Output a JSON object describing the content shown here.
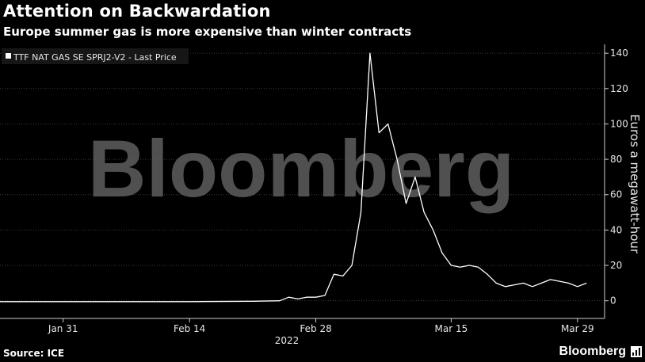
{
  "header": {
    "title": "Attention on Backwardation",
    "subtitle": "Europe summer gas is more expensive than winter contracts"
  },
  "footer": {
    "source": "Source: ICE",
    "brand": "Bloomberg"
  },
  "watermark": "Bloomberg",
  "colors": {
    "background": "#000000",
    "line": "#ffffff",
    "grid": "#3a3a3a",
    "axis": "#cfcfcf"
  },
  "chart_data": {
    "type": "line",
    "ylabel": "Euros a megawatt-hour",
    "year_label": "2022",
    "legend": {
      "position": "top-left",
      "label": "TTF NAT GAS SE SPRJ2-V2 - Last Price"
    },
    "grid": true,
    "y_axis_side": "right",
    "ylim": [
      -10,
      145
    ],
    "yticks": [
      0,
      20,
      40,
      60,
      80,
      100,
      120,
      140
    ],
    "xlim": [
      "2022-01-24",
      "2022-04-01"
    ],
    "xticks": [
      {
        "date": "2022-01-31",
        "label": "Jan 31"
      },
      {
        "date": "2022-02-14",
        "label": "Feb 14"
      },
      {
        "date": "2022-02-28",
        "label": "Feb 28"
      },
      {
        "date": "2022-03-15",
        "label": "Mar 15"
      },
      {
        "date": "2022-03-29",
        "label": "Mar 29"
      }
    ],
    "series": [
      {
        "name": "TTF NAT GAS SE SPRJ2-V2 - Last Price",
        "x": [
          "2022-01-24",
          "2022-01-31",
          "2022-02-07",
          "2022-02-14",
          "2022-02-21",
          "2022-02-24",
          "2022-02-25",
          "2022-02-26",
          "2022-02-27",
          "2022-02-28",
          "2022-03-01",
          "2022-03-02",
          "2022-03-03",
          "2022-03-04",
          "2022-03-05",
          "2022-03-06",
          "2022-03-07",
          "2022-03-08",
          "2022-03-09",
          "2022-03-10",
          "2022-03-11",
          "2022-03-12",
          "2022-03-13",
          "2022-03-14",
          "2022-03-15",
          "2022-03-16",
          "2022-03-17",
          "2022-03-18",
          "2022-03-19",
          "2022-03-20",
          "2022-03-21",
          "2022-03-22",
          "2022-03-23",
          "2022-03-24",
          "2022-03-25",
          "2022-03-26",
          "2022-03-27",
          "2022-03-28",
          "2022-03-29",
          "2022-03-30"
        ],
        "y": [
          -0.5,
          -0.5,
          -0.5,
          -0.5,
          -0.3,
          0,
          2,
          1,
          2,
          2,
          3,
          15,
          14,
          20,
          50,
          140,
          95,
          100,
          80,
          55,
          70,
          50,
          40,
          27,
          20,
          19,
          20,
          19,
          15,
          10,
          8,
          9,
          10,
          8,
          10,
          12,
          11,
          10,
          8,
          10
        ]
      }
    ]
  }
}
